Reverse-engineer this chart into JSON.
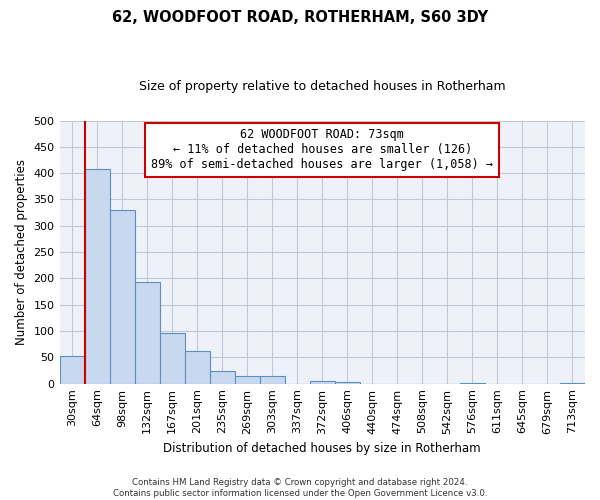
{
  "title": "62, WOODFOOT ROAD, ROTHERHAM, S60 3DY",
  "subtitle": "Size of property relative to detached houses in Rotherham",
  "xlabel": "Distribution of detached houses by size in Rotherham",
  "ylabel": "Number of detached properties",
  "bar_labels": [
    "30sqm",
    "64sqm",
    "98sqm",
    "132sqm",
    "167sqm",
    "201sqm",
    "235sqm",
    "269sqm",
    "303sqm",
    "337sqm",
    "372sqm",
    "406sqm",
    "440sqm",
    "474sqm",
    "508sqm",
    "542sqm",
    "576sqm",
    "611sqm",
    "645sqm",
    "679sqm",
    "713sqm"
  ],
  "bar_values": [
    52,
    408,
    330,
    193,
    96,
    63,
    25,
    14,
    14,
    0,
    5,
    3,
    0,
    0,
    0,
    0,
    2,
    0,
    0,
    0,
    2
  ],
  "bar_color": "#c8d9ef",
  "bar_edge_color": "#5a8fc0",
  "vline_x": 1.0,
  "vline_color": "#cc0000",
  "annotation_line1": "62 WOODFOOT ROAD: 73sqm",
  "annotation_line2": "← 11% of detached houses are smaller (126)",
  "annotation_line3": "89% of semi-detached houses are larger (1,058) →",
  "annotation_box_color": "#ffffff",
  "annotation_box_edge": "#cc0000",
  "ylim": [
    0,
    500
  ],
  "yticks": [
    0,
    50,
    100,
    150,
    200,
    250,
    300,
    350,
    400,
    450,
    500
  ],
  "footer_line1": "Contains HM Land Registry data © Crown copyright and database right 2024.",
  "footer_line2": "Contains public sector information licensed under the Open Government Licence v3.0.",
  "bg_color": "#ffffff",
  "plot_bg_color": "#eef2f8",
  "grid_color": "#c0c8d8"
}
